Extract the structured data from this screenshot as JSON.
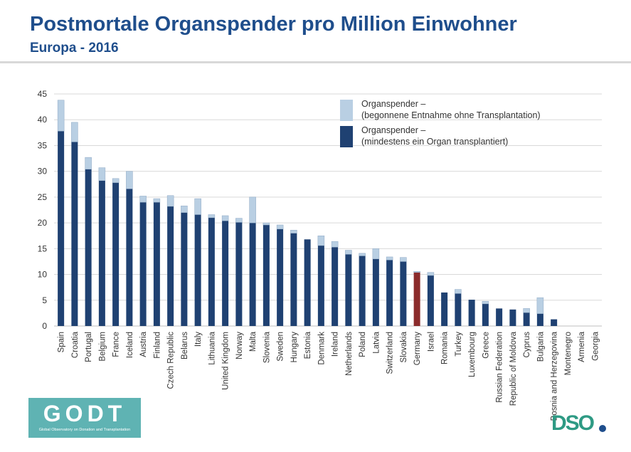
{
  "header": {
    "title": "Postmortale Organspender pro Million Einwohner",
    "subtitle": "Europa - 2016"
  },
  "logos": {
    "godt": {
      "word": "GODT",
      "subtitle": "Global Observatory on Donation and Transplantation"
    },
    "dso": {
      "word": "DSO"
    }
  },
  "chart_data": {
    "type": "bar",
    "stacked": true,
    "categories": [
      "Spain",
      "Croatia",
      "Portugal",
      "Belgium",
      "France",
      "Iceland",
      "Austria",
      "Finland",
      "Czech Republic",
      "Belarus",
      "Italy",
      "Lithuania",
      "United Kingdom",
      "Norway",
      "Malta",
      "Slovenia",
      "Sweden",
      "Hungary",
      "Estonia",
      "Denmark",
      "Ireland",
      "Netherlands",
      "Poland",
      "Latvia",
      "Switzerland",
      "Slovakia",
      "Germany",
      "Israel",
      "Romania",
      "Turkey",
      "Luxembourg",
      "Greece",
      "Russian Federation",
      "Republic of Moldova",
      "Cyprus",
      "Bulgaria",
      "Bosnia and Herzegovina",
      "Montenegro",
      "Armenia",
      "Georgia"
    ],
    "series": [
      {
        "name": "Organspender –\n(mindestens ein Organ transplantiert)",
        "values": [
          37.8,
          35.7,
          30.4,
          28.2,
          27.8,
          26.6,
          24.0,
          24.0,
          23.2,
          22.0,
          21.6,
          21.0,
          20.4,
          20.1,
          20.0,
          19.6,
          18.8,
          18.0,
          16.8,
          15.6,
          15.3,
          13.9,
          13.6,
          13.0,
          12.8,
          12.5,
          10.4,
          9.8,
          6.5,
          6.3,
          5.1,
          4.3,
          3.4,
          3.2,
          2.6,
          2.4,
          1.3,
          0,
          0,
          0
        ]
      },
      {
        "name": "Organspender –\n(begonnene Entnahme ohne Transplantation)",
        "values": [
          6.0,
          3.8,
          2.3,
          2.5,
          0.8,
          3.4,
          1.2,
          0.7,
          2.1,
          1.3,
          3.1,
          0.6,
          1.0,
          0.8,
          5.0,
          0.4,
          0.8,
          0.6,
          0,
          1.9,
          1.1,
          0.8,
          0.5,
          2.0,
          0.6,
          0.8,
          0.2,
          0.6,
          0,
          0.8,
          0,
          0.5,
          0,
          0,
          0.8,
          3.1,
          0,
          0,
          0,
          0
        ]
      }
    ],
    "highlight": {
      "category": "Germany",
      "color": "#8b2b2b"
    },
    "colors": {
      "main": "#1f4172",
      "extra": "#b9cfe3",
      "highlight": "#8b2b2b",
      "grid": "#d9d9d9",
      "axis_text": "#333333"
    },
    "yticks": [
      0,
      5,
      10,
      15,
      20,
      25,
      30,
      35,
      40,
      45
    ],
    "ylim": [
      0,
      45
    ],
    "grid": true,
    "legend_position": "top-right",
    "xlabel": "",
    "ylabel": ""
  }
}
